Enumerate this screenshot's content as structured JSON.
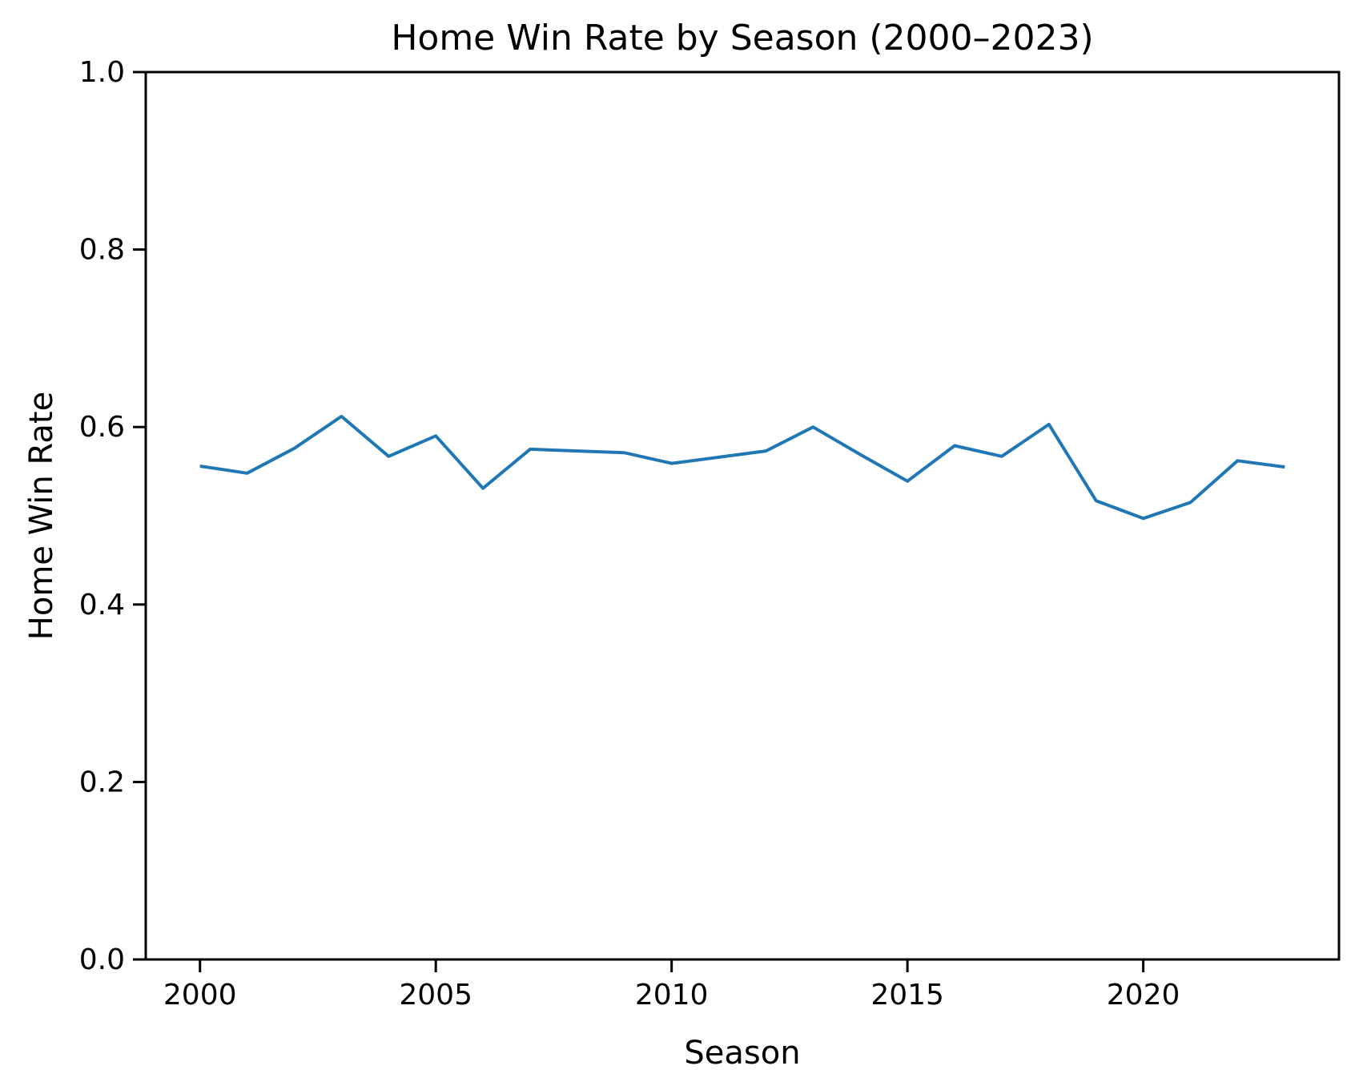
{
  "figure": {
    "title": "Home Win Rate by Season (2000–2023)",
    "xlabel": "Season",
    "ylabel": "Home Win Rate"
  },
  "chart_data": {
    "type": "line",
    "title": "Home Win Rate by Season (2000–2023)",
    "xlabel": "Season",
    "ylabel": "Home Win Rate",
    "x": [
      2000,
      2001,
      2002,
      2003,
      2004,
      2005,
      2006,
      2007,
      2008,
      2009,
      2010,
      2011,
      2012,
      2013,
      2014,
      2015,
      2016,
      2017,
      2018,
      2019,
      2020,
      2021,
      2022,
      2023
    ],
    "series": [
      {
        "name": "Home Win Rate",
        "values": [
          0.556,
          0.548,
          0.576,
          0.612,
          0.567,
          0.59,
          0.531,
          0.575,
          0.573,
          0.571,
          0.559,
          0.566,
          0.573,
          0.6,
          0.569,
          0.539,
          0.579,
          0.567,
          0.603,
          0.517,
          0.497,
          0.515,
          0.562,
          0.555
        ]
      }
    ],
    "xlim": [
      1998.85,
      2024.15
    ],
    "ylim": [
      0.0,
      1.0
    ],
    "xticks": [
      2000,
      2005,
      2010,
      2015,
      2020
    ],
    "xtick_labels": [
      "2000",
      "2005",
      "2010",
      "2015",
      "2020"
    ],
    "yticks": [
      0.0,
      0.2,
      0.4,
      0.6,
      0.8,
      1.0
    ],
    "ytick_labels": [
      "0.0",
      "0.2",
      "0.4",
      "0.6",
      "0.8",
      "1.0"
    ],
    "grid": false,
    "legend_position": "none",
    "line_color": "#1f77b4",
    "axis_color": "#000000",
    "background_color": "#ffffff"
  }
}
